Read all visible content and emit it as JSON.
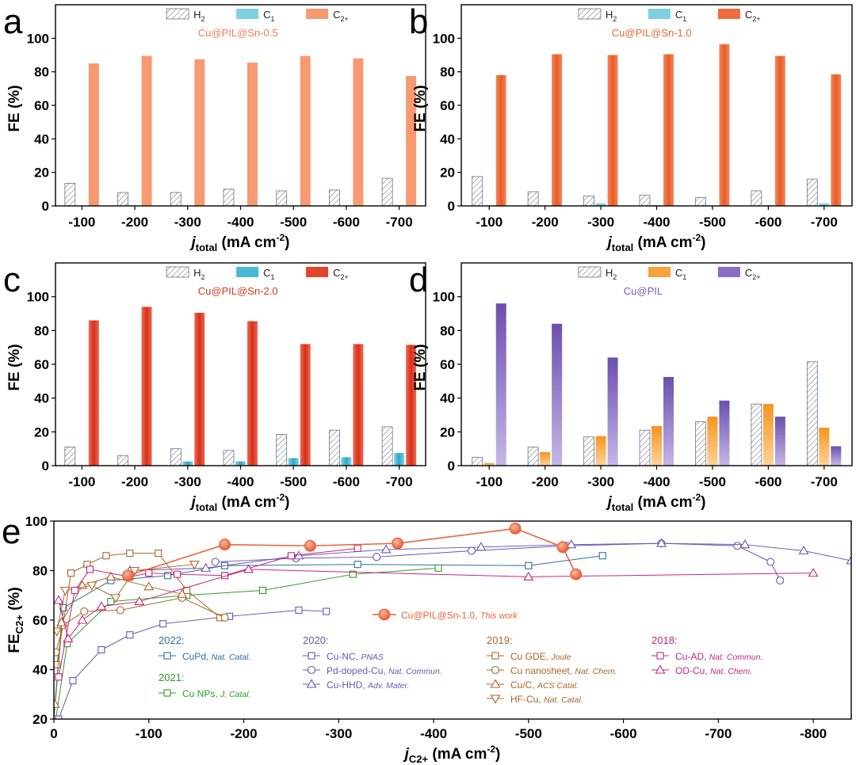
{
  "colors": {
    "h2_fill": "#ffffff",
    "h2_hatch": "#7a8597",
    "c1_a": "#7fd0e0",
    "c2_a": "#f79a72",
    "c1_b": "#7fd0e0",
    "c2_b": "#f06c3e",
    "c1_c": "#48b9d6",
    "c2_c": "#e4452c",
    "c1_d": "#f9a13a",
    "c2_d": "#8a6cc4",
    "title_a": "#f07d58",
    "title_b": "#ee6633",
    "title_c": "#d9381e",
    "title_d": "#7a5cb8",
    "y2022": "#2f6f9f",
    "y2021": "#2e9a2e",
    "y2020": "#6a56b0",
    "y2019": "#a8672a",
    "y2018": "#c0287e",
    "this_work": "#e8643c"
  },
  "panels": [
    {
      "label": "a",
      "subtitle": "Cu@PIL@Sn-0.5",
      "color_key": "a",
      "legend": [
        "H2",
        "C1",
        "C2+"
      ],
      "chart_data": {
        "type": "bar",
        "categories": [
          "-100",
          "-200",
          "-300",
          "-400",
          "-500",
          "-600",
          "-700"
        ],
        "series": [
          {
            "name": "H2",
            "values": [
              13.5,
              8,
              8,
              10,
              9,
              9.5,
              16.5
            ]
          },
          {
            "name": "C1",
            "values": [
              0,
              0,
              0,
              0,
              0,
              0,
              0.5
            ]
          },
          {
            "name": "C2+",
            "values": [
              85,
              89.5,
              87.5,
              85.5,
              89.5,
              88,
              77.5
            ]
          }
        ],
        "ylabel": "FE (%)",
        "xlabel_main": "j",
        "xlabel_sub": "total",
        "xlabel_unit": " (mA cm",
        "xlabel_exp": "-2",
        "xlabel_close": ")",
        "ylim": [
          0,
          120
        ],
        "yticks": [
          "0",
          "20",
          "40",
          "60",
          "80",
          "100"
        ]
      }
    },
    {
      "label": "b",
      "subtitle": "Cu@PIL@Sn-1.0",
      "color_key": "b",
      "legend": [
        "H2",
        "C1",
        "C2+"
      ],
      "chart_data": {
        "type": "bar",
        "categories": [
          "-100",
          "-200",
          "-300",
          "-400",
          "-500",
          "-600",
          "-700"
        ],
        "series": [
          {
            "name": "H2",
            "values": [
              17.5,
              8.5,
              6,
              6.5,
              5,
              9,
              16
            ]
          },
          {
            "name": "C1",
            "values": [
              0,
              0,
              1.5,
              0.5,
              0,
              0.5,
              1.5
            ]
          },
          {
            "name": "C2+",
            "values": [
              78,
              90.5,
              90,
              90.5,
              96.5,
              89.5,
              78.5
            ]
          }
        ],
        "ylabel": "FE (%)",
        "xlabel_main": "j",
        "xlabel_sub": "total",
        "xlabel_unit": " (mA cm",
        "xlabel_exp": "-2",
        "xlabel_close": ")",
        "ylim": [
          0,
          120
        ],
        "yticks": [
          "0",
          "20",
          "40",
          "60",
          "80",
          "100"
        ]
      }
    },
    {
      "label": "c",
      "subtitle": "Cu@PIL@Sn-2.0",
      "color_key": "c",
      "legend": [
        "H2",
        "C1",
        "C2+"
      ],
      "chart_data": {
        "type": "bar",
        "categories": [
          "-100",
          "-200",
          "-300",
          "-400",
          "-500",
          "-600",
          "-700"
        ],
        "series": [
          {
            "name": "H2",
            "values": [
              11,
              6,
              10,
              9,
              18.5,
              21,
              23
            ]
          },
          {
            "name": "C1",
            "values": [
              0,
              0,
              2.5,
              2.5,
              4.5,
              5,
              7.5
            ]
          },
          {
            "name": "C2+",
            "values": [
              86,
              94,
              90.5,
              85.5,
              72,
              72,
              71.5
            ]
          }
        ],
        "ylabel": "FE (%)",
        "xlabel_main": "j",
        "xlabel_sub": "total",
        "xlabel_unit": " (mA cm",
        "xlabel_exp": "-2",
        "xlabel_close": ")",
        "ylim": [
          0,
          120
        ],
        "yticks": [
          "0",
          "20",
          "40",
          "60",
          "80",
          "100"
        ]
      }
    },
    {
      "label": "d",
      "subtitle": "Cu@PIL",
      "color_key": "d",
      "legend": [
        "H2",
        "C1",
        "C2+"
      ],
      "chart_data": {
        "type": "bar",
        "categories": [
          "-100",
          "-200",
          "-300",
          "-400",
          "-500",
          "-600",
          "-700"
        ],
        "series": [
          {
            "name": "H2",
            "values": [
              5,
              11,
              17,
              21,
              26,
              36.5,
              61.5
            ]
          },
          {
            "name": "C1",
            "values": [
              1.5,
              8,
              17.5,
              23.5,
              29,
              36.5,
              22.5
            ]
          },
          {
            "name": "C2+",
            "values": [
              96,
              84,
              64,
              52.5,
              38.5,
              29,
              11.5
            ]
          }
        ],
        "ylabel": "FE (%)",
        "xlabel_main": "j",
        "xlabel_sub": "total",
        "xlabel_unit": " (mA cm",
        "xlabel_exp": "-2",
        "xlabel_close": ")",
        "ylim": [
          0,
          120
        ],
        "yticks": [
          "0",
          "20",
          "40",
          "60",
          "80",
          "100"
        ]
      }
    }
  ],
  "panel_e": {
    "label": "e",
    "chart_data": {
      "type": "line",
      "ylabel_main": "FE",
      "ylabel_sub": "C2+",
      "ylabel_unit": " (%)",
      "xlabel_main": "j",
      "xlabel_sub": "C2+",
      "xlabel_unit": " (mA cm",
      "xlabel_exp": "-2",
      "xlabel_close": ")",
      "xlim": [
        0,
        -840
      ],
      "ylim": [
        20,
        100
      ],
      "xticks": [
        {
          "v": 0,
          "t": "0"
        },
        {
          "v": -100,
          "t": "-100"
        },
        {
          "v": -200,
          "t": "-200"
        },
        {
          "v": -300,
          "t": "-300"
        },
        {
          "v": -400,
          "t": "-400"
        },
        {
          "v": -500,
          "t": "-500"
        },
        {
          "v": -600,
          "t": "-600"
        },
        {
          "v": -700,
          "t": "-700"
        },
        {
          "v": -800,
          "t": "-800"
        }
      ],
      "yticks": [
        {
          "v": 20,
          "t": "20"
        },
        {
          "v": 40,
          "t": "40"
        },
        {
          "v": 60,
          "t": "60"
        },
        {
          "v": 80,
          "t": "80"
        },
        {
          "v": 100,
          "t": "100"
        }
      ],
      "series": [
        {
          "name": "CuPd",
          "journal": "Nat. Catal.",
          "year": "2022",
          "color": "#2f6f9f",
          "marker": "square",
          "x": [
            0,
            -10,
            -60,
            -120,
            -180,
            -320,
            -500,
            -578
          ],
          "y": [
            20,
            65,
            76,
            78,
            82,
            82.5,
            82,
            86
          ]
        },
        {
          "name": "Cu NPs",
          "journal": "J. Catal.",
          "year": "2021",
          "color": "#2e9a2e",
          "marker": "square",
          "x": [
            -2,
            -14,
            -60,
            -140,
            -220,
            -315,
            -405
          ],
          "y": [
            20,
            50.5,
            67.5,
            70,
            72,
            78.5,
            81
          ]
        },
        {
          "name": "Cu-NC",
          "journal": "PNAS",
          "year": "2020",
          "color": "#6a56b0",
          "marker": "square",
          "x": [
            -5,
            -20,
            -50,
            -80,
            -115,
            -185,
            -258,
            -287
          ],
          "y": [
            20,
            35.5,
            48,
            54,
            58.5,
            61.5,
            64,
            63.5
          ]
        },
        {
          "name": "Pd-doped-Cu",
          "journal": "Nat. Commun.",
          "year": "2020",
          "color": "#6a56b0",
          "marker": "circle",
          "x": [
            -170,
            -255,
            -340,
            -440,
            -540,
            -640,
            -720,
            -755,
            -765
          ],
          "y": [
            83.5,
            85,
            85.5,
            88,
            90,
            91,
            90,
            83.5,
            76
          ]
        },
        {
          "name": "Cu-HHD",
          "journal": "Adv. Mater.",
          "year": "2020",
          "color": "#6a56b0",
          "marker": "triangle",
          "x": [
            -80,
            -160,
            -258,
            -350,
            -450,
            -545,
            -640,
            -728,
            -790,
            -840
          ],
          "y": [
            80,
            81,
            86,
            88.5,
            89.5,
            90.5,
            91,
            90.5,
            88,
            84
          ]
        },
        {
          "name": "Cu GDE",
          "journal": "Joule",
          "year": "2019",
          "color": "#a8672a",
          "marker": "square",
          "x": [
            -3,
            -18,
            -35,
            -55,
            -80,
            -110,
            -140,
            -175
          ],
          "y": [
            42,
            79,
            82.5,
            86,
            87,
            87,
            72,
            61
          ]
        },
        {
          "name": "Cu nanosheet",
          "journal": "Nat. Chem.",
          "year": "2019",
          "color": "#a8672a",
          "marker": "circle",
          "x": [
            -2,
            -10,
            -32,
            -70,
            -135,
            -180
          ],
          "y": [
            47,
            58,
            63.5,
            64,
            69,
            61
          ]
        },
        {
          "name": "Cu/C",
          "journal": "ACS Catal.",
          "year": "2019",
          "color": "#a8672a",
          "marker": "triangle",
          "x": [
            -1,
            -8,
            -30,
            -60,
            -100,
            -135
          ],
          "y": [
            26,
            59,
            74,
            77.5,
            73.5,
            70.5
          ]
        },
        {
          "name": "HF-Cu",
          "journal": "Nat. Catal.",
          "year": "2019",
          "color": "#a8672a",
          "marker": "triangle-down",
          "x": [
            -3,
            -12,
            -40,
            -65,
            -85,
            -148
          ],
          "y": [
            55.5,
            72,
            74,
            69,
            80,
            82.5
          ]
        },
        {
          "name": "Cu-AD",
          "journal": "Nat. Commun.",
          "year": "2018",
          "color": "#c0287e",
          "marker": "square",
          "x": [
            -5,
            -22,
            -38,
            -80,
            -100,
            -130,
            -180,
            -250,
            -320
          ],
          "y": [
            37,
            72,
            80.5,
            77.5,
            79,
            78.5,
            78,
            86,
            89
          ]
        },
        {
          "name": "OD-Cu",
          "journal": "Nat. Chem.",
          "year": "2018",
          "color": "#c0287e",
          "marker": "triangle",
          "x": [
            -5,
            -15,
            -30,
            -50,
            -90,
            -205,
            -500,
            -800
          ],
          "y": [
            68,
            52.5,
            60,
            65.5,
            67.5,
            80.5,
            77.5,
            79
          ]
        },
        {
          "name": "Cu@PIL@Sn-1.0",
          "journal": "This work",
          "year": "",
          "color": "#e8643c",
          "marker": "big-circle",
          "x": [
            -78,
            -180,
            -270,
            -362,
            -486,
            -536,
            -550
          ],
          "y": [
            78,
            90.5,
            90,
            91,
            97,
            89.5,
            78.5
          ]
        }
      ],
      "years": [
        {
          "year": "2022:",
          "color_key": "y2022",
          "items": [
            {
              "name": "CuPd",
              "journal": "Nat. Catal."
            }
          ]
        },
        {
          "year": "2021:",
          "color_key": "y2021",
          "items": [
            {
              "name": "Cu NPs",
              "journal": "J. Catal."
            }
          ]
        },
        {
          "year": "2020:",
          "color_key": "y2020",
          "items": [
            {
              "name": "Cu-NC",
              "journal": "PNAS"
            },
            {
              "name": "Pd-doped-Cu",
              "journal": "Nat. Commun."
            },
            {
              "name": "Cu-HHD",
              "journal": "Adv. Mater."
            }
          ]
        },
        {
          "year": "2019:",
          "color_key": "y2019",
          "items": [
            {
              "name": "Cu GDE",
              "journal": "Joule"
            },
            {
              "name": "Cu nanosheet",
              "journal": "Nat. Chem."
            },
            {
              "name": "Cu/C",
              "journal": "ACS Catal."
            },
            {
              "name": "HF-Cu",
              "journal": "Nat. Catal."
            }
          ]
        },
        {
          "year": "2018:",
          "color_key": "y2018",
          "items": [
            {
              "name": "Cu-AD",
              "journal": "Nat. Commun."
            },
            {
              "name": "OD-Cu",
              "journal": "Nat. Chem."
            }
          ]
        }
      ],
      "this_work_label": "Cu@PIL@Sn-1.0,",
      "this_work_note": "This work"
    }
  }
}
